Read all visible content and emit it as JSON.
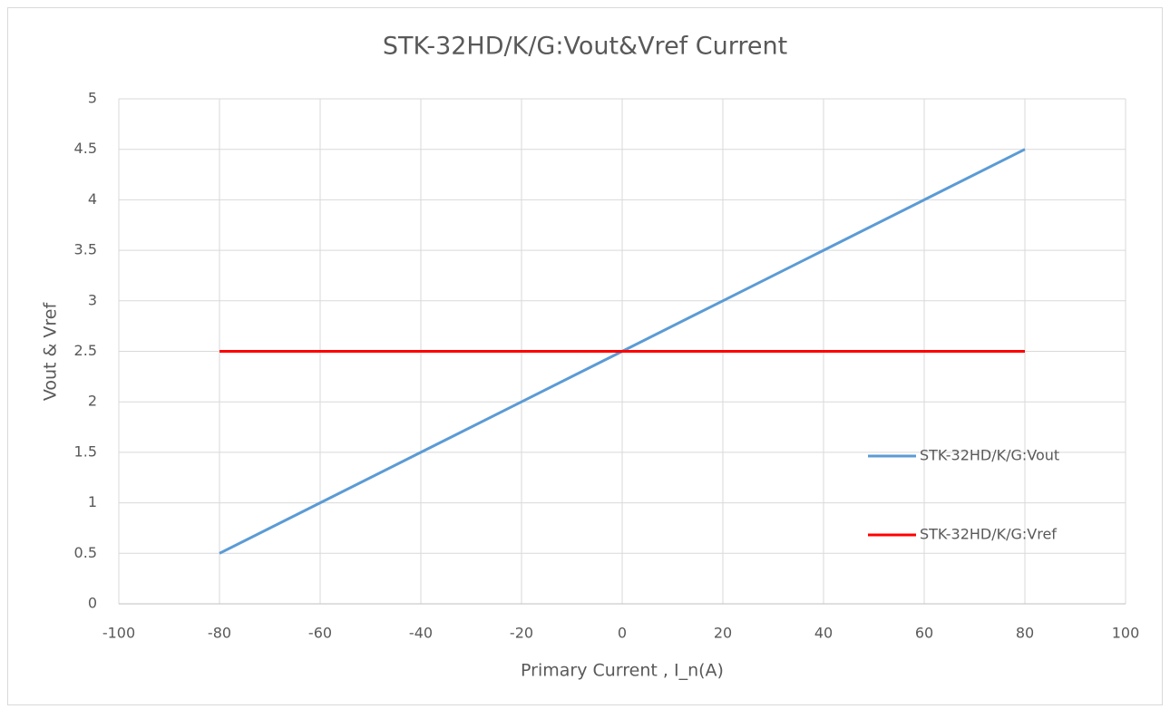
{
  "chart_data": {
    "type": "line",
    "title": "STK-32HD/K/G:Vout&Vref  Current",
    "x_label": "Primary Current , I_n(A)",
    "y_label": "Vout & Vref",
    "x": [
      -80,
      -60,
      -40,
      -20,
      0,
      20,
      40,
      60,
      80
    ],
    "series": [
      {
        "name": "STK-32HD/K/G:Vout",
        "color": "#5b9bd5",
        "values": [
          0.5,
          1,
          1.5,
          2,
          2.5,
          3,
          3.5,
          4,
          4.5
        ]
      },
      {
        "name": "STK-32HD/K/G:Vref",
        "color": "#ff0000",
        "values": [
          2.5,
          2.5,
          2.5,
          2.5,
          2.5,
          2.5,
          2.5,
          2.5,
          2.5
        ]
      }
    ],
    "xlim": [
      -100,
      100
    ],
    "xticks": [
      -100,
      -80,
      -60,
      -40,
      -20,
      0,
      20,
      40,
      60,
      80,
      100
    ],
    "ylim": [
      0,
      5
    ],
    "yticks": [
      0,
      0.5,
      1,
      1.5,
      2,
      2.5,
      3,
      3.5,
      4,
      4.5,
      5
    ],
    "grid": true,
    "legend": "right"
  }
}
